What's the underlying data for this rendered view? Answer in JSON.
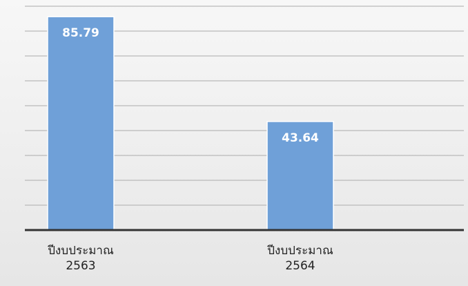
{
  "chart_data": {
    "type": "bar",
    "categories": [
      {
        "line1": "ปีงบประมาณ",
        "line2": "2563"
      },
      {
        "line1": "ปีงบประมาณ",
        "line2": "2564"
      }
    ],
    "values": [
      85.79,
      43.64
    ],
    "data_labels": [
      "85.79",
      "43.64"
    ],
    "title": "",
    "xlabel": "",
    "ylabel": "",
    "ylim": [
      0,
      90
    ],
    "gridlines": 9,
    "grid": true,
    "legend": "none",
    "colors": {
      "bar": "#6fa0d8",
      "bar_border": "#ffffff",
      "gridline": "#b9b9b9",
      "axis": "#333333",
      "data_label": "#ffffff"
    }
  }
}
